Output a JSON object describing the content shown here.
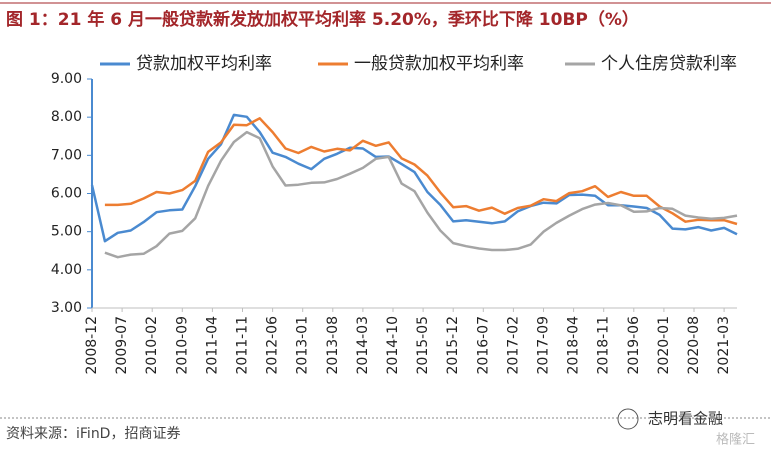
{
  "chart_data": {
    "type": "line",
    "title": "图 1：21 年 6 月一般贷款新发放加权平均利率 5.20%，季环比下降 10BP（%）",
    "source": "资料来源：iFinD，招商证券",
    "watermark": "志明看金融",
    "watermark2": "格隆汇",
    "x": [
      "2008-12",
      "2009-03",
      "2009-06",
      "2009-09",
      "2009-12",
      "2010-03",
      "2010-06",
      "2010-09",
      "2010-12",
      "2011-03",
      "2011-06",
      "2011-09",
      "2011-12",
      "2012-03",
      "2012-06",
      "2012-09",
      "2012-12",
      "2013-03",
      "2013-06",
      "2013-09",
      "2013-12",
      "2014-03",
      "2014-06",
      "2014-09",
      "2014-12",
      "2015-03",
      "2015-06",
      "2015-09",
      "2015-12",
      "2016-03",
      "2016-06",
      "2016-09",
      "2016-12",
      "2017-03",
      "2017-06",
      "2017-09",
      "2017-12",
      "2018-03",
      "2018-06",
      "2018-09",
      "2018-12",
      "2019-03",
      "2019-06",
      "2019-09",
      "2019-12",
      "2020-03",
      "2020-06",
      "2020-09",
      "2020-12",
      "2021-03",
      "2021-06"
    ],
    "series": [
      {
        "name": "贷款加权平均利率",
        "color": "#4a8ad0",
        "values": [
          6.22,
          4.75,
          4.97,
          5.03,
          5.25,
          5.51,
          5.56,
          5.58,
          6.19,
          6.91,
          7.29,
          8.06,
          8.01,
          7.61,
          7.07,
          6.96,
          6.78,
          6.64,
          6.91,
          7.04,
          7.2,
          7.18,
          6.96,
          6.97,
          6.77,
          6.56,
          6.04,
          5.7,
          5.27,
          5.3,
          5.26,
          5.22,
          5.27,
          5.53,
          5.67,
          5.76,
          5.74,
          5.96,
          5.97,
          5.94,
          5.69,
          5.69,
          5.66,
          5.62,
          5.44,
          5.08,
          5.06,
          5.12,
          5.03,
          5.1,
          4.93
        ]
      },
      {
        "name": "一般贷款加权平均利率",
        "color": "#ed7d31",
        "values": [
          null,
          5.7,
          5.7,
          5.73,
          5.87,
          6.04,
          6.0,
          6.09,
          6.33,
          7.09,
          7.34,
          7.8,
          7.79,
          7.97,
          7.61,
          7.18,
          7.06,
          7.22,
          7.1,
          7.17,
          7.13,
          7.38,
          7.25,
          7.34,
          6.92,
          6.76,
          6.47,
          6.03,
          5.64,
          5.67,
          5.55,
          5.63,
          5.47,
          5.62,
          5.68,
          5.85,
          5.8,
          6.01,
          6.06,
          6.19,
          5.91,
          6.04,
          5.94,
          5.94,
          5.66,
          5.48,
          5.26,
          5.31,
          5.3,
          5.3,
          5.2
        ]
      },
      {
        "name": "个人住房贷款利率",
        "color": "#a5a5a5",
        "values": [
          null,
          4.45,
          4.33,
          4.4,
          4.42,
          4.62,
          4.95,
          5.02,
          5.35,
          6.2,
          6.86,
          7.35,
          7.61,
          7.45,
          6.71,
          6.21,
          6.23,
          6.28,
          6.29,
          6.38,
          6.52,
          6.67,
          6.91,
          6.96,
          6.26,
          6.06,
          5.5,
          5.03,
          4.7,
          4.62,
          4.56,
          4.52,
          4.52,
          4.55,
          4.66,
          5.0,
          5.23,
          5.42,
          5.59,
          5.71,
          5.75,
          5.69,
          5.52,
          5.53,
          5.62,
          5.6,
          5.42,
          5.37,
          5.34,
          5.36,
          5.42
        ]
      }
    ],
    "xlim": [
      "2008-12",
      "2021-06"
    ],
    "xticks": [
      "2008-12",
      "2009-07",
      "2010-02",
      "2010-09",
      "2011-04",
      "2011-11",
      "2012-06",
      "2013-01",
      "2013-08",
      "2014-03",
      "2014-10",
      "2015-05",
      "2015-12",
      "2016-07",
      "2017-02",
      "2017-09",
      "2018-04",
      "2018-11",
      "2019-06",
      "2020-01",
      "2020-08",
      "2021-03"
    ],
    "ylim": [
      3,
      9
    ],
    "yticks": [
      {
        "value": 3,
        "label": "3.00"
      },
      {
        "value": 4,
        "label": "4.00"
      },
      {
        "value": 5,
        "label": "5.00"
      },
      {
        "value": 6,
        "label": "6.00"
      },
      {
        "value": 7,
        "label": "7.00"
      },
      {
        "value": 8,
        "label": "8.00"
      },
      {
        "value": 9,
        "label": "9.00"
      }
    ],
    "axis_color": "#4a8ad0",
    "grid": false,
    "legend": "top"
  }
}
